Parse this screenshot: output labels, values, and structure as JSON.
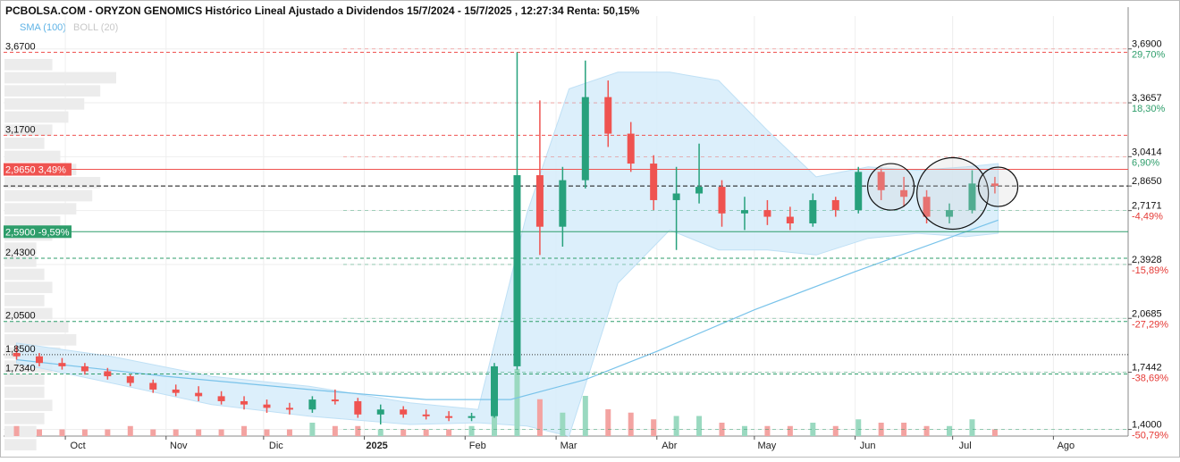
{
  "header": {
    "title": "PCBOLSA.COM - ORYZON GENOMICS Histórico Lineal Ajustado a Dividendos 15/7/2024 - 15/7/2025 , 12:27:34 Renta: 50,15%",
    "indicators": [
      "SMA (100)",
      "BOLL (20)"
    ]
  },
  "colors": {
    "up": "#27a17c",
    "down": "#ef5350",
    "sma": "#79c3ea",
    "boll_fill": "#d6ecfa",
    "level_red": "#ef5350",
    "level_green": "#2e9e6b",
    "level_badge_red": "#ef5350",
    "level_badge_green": "#2e9e6b"
  },
  "chart_data": {
    "type": "candlestick",
    "title": "PCBOLSA.COM - ORYZON GENOMICS Histórico Lineal Ajustado a Dividendos 15/7/2024 - 15/7/2025 , 12:27:34 Renta: 50,15%",
    "x_months": [
      "Oct",
      "Nov",
      "Dic",
      "2025",
      "Feb",
      "Mar",
      "Abr",
      "May",
      "Jun",
      "Jul",
      "Ago"
    ],
    "right_axis": [
      {
        "value": "3,6900",
        "pct": "29,70%"
      },
      {
        "value": "3,3657",
        "pct": "18,30%"
      },
      {
        "value": "3,0414",
        "pct": "6,90%"
      },
      {
        "value": "2,8650",
        "pct": ""
      },
      {
        "value": "2,7171",
        "pct": "-4,49%"
      },
      {
        "value": "2,3928",
        "pct": "-15,89%"
      },
      {
        "value": "2,0685",
        "pct": "-27,29%"
      },
      {
        "value": "1,7442",
        "pct": "-38,69%"
      },
      {
        "value": "1,4000",
        "pct": "-50,79%"
      }
    ],
    "left_levels": [
      {
        "label": "3,6700",
        "value": 3.67
      },
      {
        "label": "3,1700",
        "value": 3.17
      },
      {
        "label": "2,4300",
        "value": 2.43
      },
      {
        "label": "2,0500",
        "value": 2.05
      },
      {
        "label": "1,8500",
        "value": 1.85
      },
      {
        "label": "1,7340",
        "value": 1.734
      }
    ],
    "badges": [
      {
        "price": "2,9650",
        "pct": "3,49%",
        "value": 2.965
      },
      {
        "price": "2,5900",
        "pct": "-9,59%",
        "value": 2.59
      }
    ],
    "current_price": 2.865,
    "ylim": [
      1.36,
      3.78
    ],
    "ohlc_weekly": [
      {
        "d": "2024-09-16",
        "o": 1.86,
        "h": 1.9,
        "l": 1.82,
        "c": 1.84
      },
      {
        "d": "2024-09-23",
        "o": 1.84,
        "h": 1.86,
        "l": 1.78,
        "c": 1.8
      },
      {
        "d": "2024-09-30",
        "o": 1.8,
        "h": 1.83,
        "l": 1.76,
        "c": 1.78
      },
      {
        "d": "2024-10-07",
        "o": 1.78,
        "h": 1.8,
        "l": 1.73,
        "c": 1.75
      },
      {
        "d": "2024-10-14",
        "o": 1.75,
        "h": 1.77,
        "l": 1.7,
        "c": 1.72
      },
      {
        "d": "2024-10-21",
        "o": 1.72,
        "h": 1.73,
        "l": 1.66,
        "c": 1.68
      },
      {
        "d": "2024-10-28",
        "o": 1.68,
        "h": 1.7,
        "l": 1.62,
        "c": 1.64
      },
      {
        "d": "2024-11-04",
        "o": 1.64,
        "h": 1.67,
        "l": 1.6,
        "c": 1.62
      },
      {
        "d": "2024-11-11",
        "o": 1.62,
        "h": 1.66,
        "l": 1.57,
        "c": 1.6
      },
      {
        "d": "2024-11-18",
        "o": 1.6,
        "h": 1.63,
        "l": 1.55,
        "c": 1.57
      },
      {
        "d": "2024-11-25",
        "o": 1.57,
        "h": 1.6,
        "l": 1.52,
        "c": 1.55
      },
      {
        "d": "2024-12-02",
        "o": 1.55,
        "h": 1.58,
        "l": 1.5,
        "c": 1.53
      },
      {
        "d": "2024-12-09",
        "o": 1.53,
        "h": 1.56,
        "l": 1.49,
        "c": 1.52
      },
      {
        "d": "2024-12-16",
        "o": 1.52,
        "h": 1.6,
        "l": 1.5,
        "c": 1.58
      },
      {
        "d": "2024-12-23",
        "o": 1.58,
        "h": 1.64,
        "l": 1.55,
        "c": 1.57
      },
      {
        "d": "2024-12-30",
        "o": 1.57,
        "h": 1.59,
        "l": 1.47,
        "c": 1.49
      },
      {
        "d": "2025-01-06",
        "o": 1.49,
        "h": 1.55,
        "l": 1.43,
        "c": 1.52
      },
      {
        "d": "2025-01-13",
        "o": 1.52,
        "h": 1.54,
        "l": 1.47,
        "c": 1.49
      },
      {
        "d": "2025-01-20",
        "o": 1.49,
        "h": 1.52,
        "l": 1.46,
        "c": 1.48
      },
      {
        "d": "2025-01-27",
        "o": 1.48,
        "h": 1.51,
        "l": 1.45,
        "c": 1.47
      },
      {
        "d": "2025-02-03",
        "o": 1.47,
        "h": 1.5,
        "l": 1.45,
        "c": 1.48
      },
      {
        "d": "2025-02-10",
        "o": 1.48,
        "h": 1.8,
        "l": 1.47,
        "c": 1.78
      },
      {
        "d": "2025-02-17",
        "o": 1.78,
        "h": 3.67,
        "l": 1.76,
        "c": 2.93
      },
      {
        "d": "2025-02-24",
        "o": 2.93,
        "h": 3.38,
        "l": 2.45,
        "c": 2.62
      },
      {
        "d": "2025-03-03",
        "o": 2.62,
        "h": 2.98,
        "l": 2.5,
        "c": 2.9
      },
      {
        "d": "2025-03-10",
        "o": 2.9,
        "h": 3.62,
        "l": 2.85,
        "c": 3.4
      },
      {
        "d": "2025-03-17",
        "o": 3.4,
        "h": 3.5,
        "l": 3.1,
        "c": 3.18
      },
      {
        "d": "2025-03-24",
        "o": 3.18,
        "h": 3.25,
        "l": 2.95,
        "c": 3.0
      },
      {
        "d": "2025-03-31",
        "o": 3.0,
        "h": 3.05,
        "l": 2.72,
        "c": 2.78
      },
      {
        "d": "2025-04-07",
        "o": 2.78,
        "h": 2.98,
        "l": 2.48,
        "c": 2.82
      },
      {
        "d": "2025-04-14",
        "o": 2.82,
        "h": 3.12,
        "l": 2.76,
        "c": 2.86
      },
      {
        "d": "2025-04-21",
        "o": 2.86,
        "h": 2.9,
        "l": 2.62,
        "c": 2.7
      },
      {
        "d": "2025-04-28",
        "o": 2.7,
        "h": 2.8,
        "l": 2.6,
        "c": 2.72
      },
      {
        "d": "2025-05-05",
        "o": 2.72,
        "h": 2.78,
        "l": 2.63,
        "c": 2.68
      },
      {
        "d": "2025-05-12",
        "o": 2.68,
        "h": 2.74,
        "l": 2.6,
        "c": 2.64
      },
      {
        "d": "2025-05-19",
        "o": 2.64,
        "h": 2.82,
        "l": 2.62,
        "c": 2.78
      },
      {
        "d": "2025-05-26",
        "o": 2.78,
        "h": 2.8,
        "l": 2.68,
        "c": 2.72
      },
      {
        "d": "2025-06-02",
        "o": 2.72,
        "h": 2.98,
        "l": 2.7,
        "c": 2.95
      },
      {
        "d": "2025-06-09",
        "o": 2.95,
        "h": 2.97,
        "l": 2.78,
        "c": 2.84
      },
      {
        "d": "2025-06-16",
        "o": 2.84,
        "h": 2.92,
        "l": 2.74,
        "c": 2.8
      },
      {
        "d": "2025-06-23",
        "o": 2.8,
        "h": 2.84,
        "l": 2.64,
        "c": 2.68
      },
      {
        "d": "2025-06-30",
        "o": 2.68,
        "h": 2.76,
        "l": 2.64,
        "c": 2.72
      },
      {
        "d": "2025-07-07",
        "o": 2.72,
        "h": 2.96,
        "l": 2.7,
        "c": 2.88
      },
      {
        "d": "2025-07-14",
        "o": 2.88,
        "h": 2.92,
        "l": 2.82,
        "c": 2.865
      }
    ],
    "sma100": [
      {
        "d": "2024-09-16",
        "v": 1.82
      },
      {
        "d": "2024-11-01",
        "v": 1.72
      },
      {
        "d": "2024-12-15",
        "v": 1.64
      },
      {
        "d": "2025-01-20",
        "v": 1.58
      },
      {
        "d": "2025-02-15",
        "v": 1.58
      },
      {
        "d": "2025-03-10",
        "v": 1.7
      },
      {
        "d": "2025-04-01",
        "v": 1.87
      },
      {
        "d": "2025-05-01",
        "v": 2.12
      },
      {
        "d": "2025-06-01",
        "v": 2.35
      },
      {
        "d": "2025-07-15",
        "v": 2.66
      }
    ],
    "bollinger_20": [
      {
        "d": "2024-09-16",
        "u": 1.92,
        "l": 1.8
      },
      {
        "d": "2024-10-15",
        "u": 1.84,
        "l": 1.68
      },
      {
        "d": "2024-11-15",
        "u": 1.72,
        "l": 1.55
      },
      {
        "d": "2024-12-15",
        "u": 1.66,
        "l": 1.48
      },
      {
        "d": "2025-01-15",
        "u": 1.56,
        "l": 1.43
      },
      {
        "d": "2025-02-05",
        "u": 1.52,
        "l": 1.44
      },
      {
        "d": "2025-02-20",
        "u": 2.7,
        "l": 1.42
      },
      {
        "d": "2025-03-05",
        "u": 3.45,
        "l": 1.36
      },
      {
        "d": "2025-03-20",
        "u": 3.55,
        "l": 2.28
      },
      {
        "d": "2025-04-05",
        "u": 3.55,
        "l": 2.6
      },
      {
        "d": "2025-04-20",
        "u": 3.5,
        "l": 2.48
      },
      {
        "d": "2025-05-05",
        "u": 3.2,
        "l": 2.48
      },
      {
        "d": "2025-05-20",
        "u": 2.92,
        "l": 2.45
      },
      {
        "d": "2025-06-05",
        "u": 2.98,
        "l": 2.55
      },
      {
        "d": "2025-06-20",
        "u": 2.96,
        "l": 2.58
      },
      {
        "d": "2025-07-05",
        "u": 2.98,
        "l": 2.56
      },
      {
        "d": "2025-07-15",
        "u": 3.0,
        "l": 2.58
      }
    ],
    "volume_weekly": [
      3,
      2,
      2,
      2,
      2,
      3,
      2,
      2,
      2,
      2,
      3,
      2,
      2,
      4,
      3,
      3,
      2,
      2,
      2,
      2,
      3,
      6,
      20,
      11,
      7,
      12,
      8,
      7,
      5,
      6,
      6,
      4,
      3,
      3,
      3,
      4,
      3,
      5,
      4,
      4,
      3,
      3,
      5,
      2
    ],
    "volume_profile": [
      6,
      14,
      12,
      10,
      8,
      6,
      5,
      7,
      9,
      12,
      11,
      9,
      7,
      6,
      4,
      4,
      5,
      6,
      5,
      6,
      8,
      9,
      7,
      6,
      5,
      5,
      6,
      5,
      4,
      4
    ],
    "grid": true,
    "annotations": [
      "circle",
      "circle",
      "circle"
    ]
  }
}
